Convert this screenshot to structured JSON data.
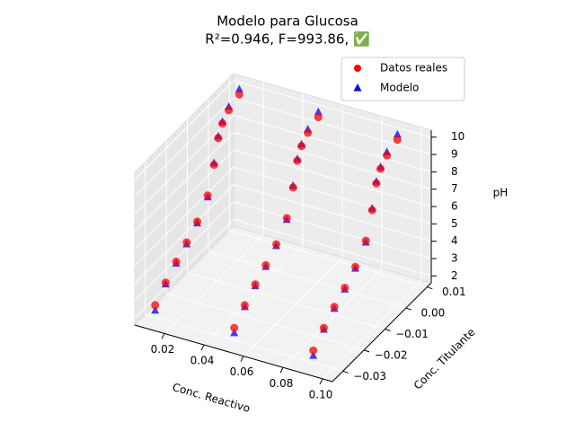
{
  "chart_data": {
    "type": "scatter3d",
    "title": "Modelo para Glucosa",
    "subtitle": "R²=0.946, F=993.86, ✅",
    "xlabel": "Conc. Reactivo",
    "ylabel": "Conc. Titulante",
    "zlabel": "pH",
    "xlim": [
      0.005,
      0.105
    ],
    "ylim": [
      -0.035,
      0.012
    ],
    "zlim": [
      1.6,
      10.4
    ],
    "xticks": [
      0.02,
      0.04,
      0.06,
      0.08,
      {
        "value": 0.1,
        "label": "0.10"
      }
    ],
    "yticks": [
      {
        "value": -0.03,
        "label": "−0.03"
      },
      {
        "value": -0.02,
        "label": "−0.02"
      },
      {
        "value": -0.01,
        "label": "−0.01"
      },
      {
        "value": 0,
        "label": "0.00"
      },
      0.01
    ],
    "zticks": [
      2,
      3,
      4,
      5,
      6,
      7,
      8,
      9,
      10
    ],
    "grid": true,
    "legend": "upper right",
    "series": [
      {
        "name": "Modelo",
        "color": "#0000ff",
        "marker": "triangle",
        "x": [
          0.01,
          0.01,
          0.01,
          0.01,
          0.01,
          0.01,
          0.01,
          0.01,
          0.01,
          0.01,
          0.01,
          0.05,
          0.05,
          0.05,
          0.05,
          0.05,
          0.05,
          0.05,
          0.05,
          0.05,
          0.05,
          0.05,
          0.09,
          0.09,
          0.09,
          0.09,
          0.09,
          0.09,
          0.09,
          0.09,
          0.09,
          0.09,
          0.09
        ],
        "y": [
          -0.03,
          -0.025,
          -0.02,
          -0.015,
          -0.01,
          -0.005,
          -0.002,
          0,
          0.002,
          0.005,
          0.01,
          -0.03,
          -0.025,
          -0.02,
          -0.015,
          -0.01,
          -0.005,
          -0.002,
          0,
          0.002,
          0.005,
          0.01,
          -0.03,
          -0.025,
          -0.02,
          -0.015,
          -0.01,
          -0.005,
          -0.002,
          0,
          0.002,
          0.005,
          0.01
        ],
        "z": [
          2.0,
          2.9,
          3.5,
          4.0,
          4.6,
          5.5,
          7.1,
          8.4,
          9.0,
          9.5,
          9.9,
          2.0,
          2.9,
          3.5,
          4.0,
          4.6,
          5.5,
          7.1,
          8.4,
          9.0,
          9.5,
          9.9,
          2.0,
          2.9,
          3.5,
          4.0,
          4.6,
          5.5,
          7.1,
          8.4,
          9.0,
          9.5,
          9.9
        ]
      },
      {
        "name": "Datos reales",
        "color": "#ff0000",
        "marker": "circle",
        "x": [
          0.01,
          0.01,
          0.01,
          0.01,
          0.01,
          0.01,
          0.01,
          0.01,
          0.01,
          0.01,
          0.01,
          0.05,
          0.05,
          0.05,
          0.05,
          0.05,
          0.05,
          0.05,
          0.05,
          0.05,
          0.05,
          0.05,
          0.09,
          0.09,
          0.09,
          0.09,
          0.09,
          0.09,
          0.09,
          0.09,
          0.09,
          0.09,
          0.09
        ],
        "y": [
          -0.03,
          -0.025,
          -0.02,
          -0.015,
          -0.01,
          -0.005,
          -0.002,
          0,
          0.002,
          0.005,
          0.01,
          -0.03,
          -0.025,
          -0.02,
          -0.015,
          -0.01,
          -0.005,
          -0.002,
          0,
          0.002,
          0.005,
          0.01,
          -0.03,
          -0.025,
          -0.02,
          -0.015,
          -0.01,
          -0.005,
          -0.002,
          0,
          0.002,
          0.005,
          0.01
        ],
        "z": [
          2.3,
          3.0,
          3.6,
          4.1,
          4.7,
          5.6,
          7.0,
          8.3,
          8.9,
          9.3,
          9.6,
          2.3,
          3.0,
          3.6,
          4.1,
          4.7,
          5.6,
          7.0,
          8.3,
          8.9,
          9.3,
          9.6,
          2.3,
          3.0,
          3.6,
          4.1,
          4.7,
          5.6,
          7.0,
          8.3,
          8.9,
          9.3,
          9.6
        ]
      }
    ]
  }
}
